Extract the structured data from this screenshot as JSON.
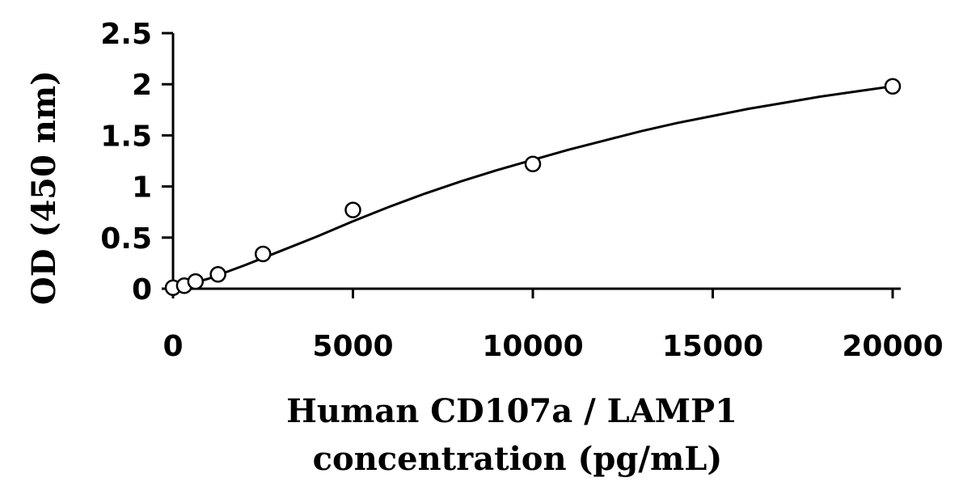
{
  "chart_data": {
    "type": "scatter",
    "title": "",
    "xlabel": "Human CD107a / LAMP1 concentration (pg/mL)",
    "xlabel_lines": [
      "Human CD107a / LAMP1",
      "concentration (pg/mL)"
    ],
    "ylabel": "OD (450 nm)",
    "xlim": [
      0,
      20000
    ],
    "ylim": [
      0,
      2.5
    ],
    "xticks": [
      0,
      5000,
      10000,
      15000,
      20000
    ],
    "xtick_labels": [
      "0",
      "5000",
      "10000",
      "15000",
      "20000"
    ],
    "yticks": [
      0,
      0.5,
      1,
      1.5,
      2,
      2.5
    ],
    "ytick_labels": [
      "0",
      "0.5",
      "1",
      "1.5",
      "2",
      "2.5"
    ],
    "grid": false,
    "series": [
      {
        "marker": "open-circle",
        "x": [
          0,
          312.5,
          625,
          1250,
          2500,
          5000,
          10000,
          20000
        ],
        "y": [
          0.01,
          0.03,
          0.07,
          0.14,
          0.34,
          0.77,
          1.22,
          1.98
        ]
      }
    ],
    "fit_curve": {
      "style": "solid",
      "x": [
        0,
        1000,
        2000,
        3000,
        4000,
        5000,
        6000,
        7000,
        8000,
        9000,
        10000,
        11000,
        12000,
        13000,
        14000,
        15000,
        16000,
        17000,
        18000,
        19000,
        20000
      ],
      "y": [
        0.0,
        0.1,
        0.23,
        0.37,
        0.51,
        0.66,
        0.8,
        0.93,
        1.05,
        1.16,
        1.26,
        1.36,
        1.45,
        1.54,
        1.62,
        1.69,
        1.76,
        1.82,
        1.88,
        1.93,
        1.98
      ]
    },
    "colors": {
      "axis": "#000000",
      "marker_stroke": "#000000",
      "marker_fill": "#ffffff",
      "curve": "#000000"
    }
  }
}
